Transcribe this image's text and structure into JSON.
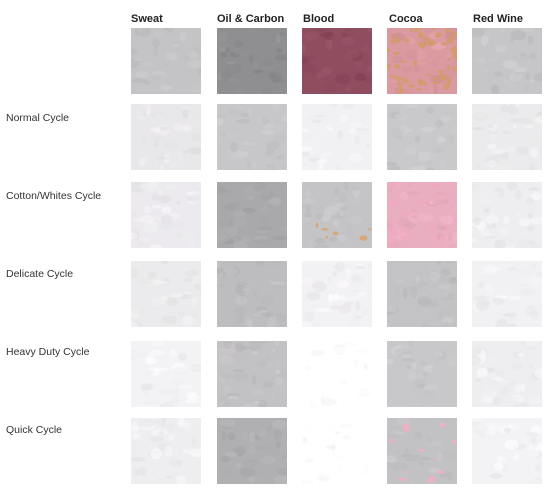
{
  "columns": [
    "Sweat",
    "Oil & Carbon",
    "Blood",
    "Cocoa",
    "Red Wine"
  ],
  "rows": [
    "Normal Cycle",
    "Cotton/Whites Cycle",
    "Delicate Cycle",
    "Heavy Duty Cycle",
    "Quick Cycle"
  ],
  "swatch_colors": {
    "top": [
      "#c4c3c5",
      "#8f8e91",
      "#8f4d60",
      "#d99aa0",
      "#c6c5c7"
    ],
    "rows": [
      [
        "#e8e7e9",
        "#c7c6c8",
        "#f1f0f2",
        "#c9c8ca",
        "#ebeaec"
      ],
      [
        "#eceaee",
        "#a9a8ab",
        "#c4c3c6",
        "#eaaec1",
        "#eeedf0"
      ],
      [
        "#ebeaec",
        "#bdbcbf",
        "#f2f1f3",
        "#c3c2c5",
        "#f1f0f2"
      ],
      [
        "#f3f2f4",
        "#c2c1c4",
        "#ffffff",
        "#c8c7ca",
        "#eeedf0"
      ],
      [
        "#eeedef",
        "#b0afb2",
        "#ffffff",
        "#c2c1c4",
        "#f3f2f4"
      ]
    ],
    "accents": {
      "cocoa_top": "#d49a6a",
      "blood_cotton": "#d9a46a",
      "cocoa_cotton": "#f0a8c0",
      "cocoa_quick": "#f0b0c4"
    }
  }
}
